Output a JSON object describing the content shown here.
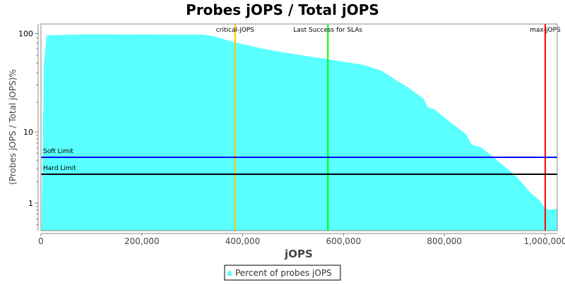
{
  "chart_data": {
    "type": "area",
    "title": "Probes jOPS / Total jOPS",
    "xlabel": "jOPS",
    "ylabel": "(Probes jOPS / Total jOPS)%",
    "xlim": [
      0,
      1024000
    ],
    "ylim": [
      0.41,
      125
    ],
    "yscale": "log",
    "grid": false,
    "legend_position": "bottom",
    "x_ticks": [
      {
        "value": 0,
        "label": "0"
      },
      {
        "value": 200000,
        "label": "200,000"
      },
      {
        "value": 400000,
        "label": "400,000"
      },
      {
        "value": 600000,
        "label": "600,000"
      },
      {
        "value": 800000,
        "label": "800,000"
      },
      {
        "value": 1000000,
        "label": "1,000,000"
      }
    ],
    "y_ticks": [
      {
        "value": 1,
        "label": "1"
      },
      {
        "value": 10,
        "label": "10"
      },
      {
        "value": 100,
        "label": "100"
      }
    ],
    "series": [
      {
        "name": "Percent of probes jOPS",
        "color": "#5AFFFF",
        "x": [
          1400,
          5600,
          11200,
          86800,
          318000,
          339000,
          385000,
          441000,
          479000,
          570000,
          640000,
          675000,
          703000,
          724000,
          759000,
          767000,
          780000,
          815000,
          843000,
          854000,
          871000,
          899000,
          938000,
          955000,
          969000,
          990000,
          1000000,
          1008000,
          1024000
        ],
        "y": [
          0.5,
          46,
          96,
          98,
          97.5,
          95,
          81,
          70,
          64.5,
          54.7,
          48,
          42,
          33.9,
          29.2,
          21.7,
          17.8,
          17,
          12.2,
          9.3,
          6.6,
          6.2,
          4.3,
          2.55,
          1.89,
          1.44,
          1.07,
          0.85,
          0.81,
          0.83
        ]
      }
    ],
    "horizontal_markers": [
      {
        "label": "Soft Limit",
        "value": 4.4,
        "color": "#0000FF"
      },
      {
        "label": "Hard Limit",
        "value": 2.55,
        "color": "#000000"
      }
    ],
    "vertical_markers": [
      {
        "label": "critical-jOPS",
        "value": 385000,
        "color": "#FFC800"
      },
      {
        "label": "Last Success for SLAs",
        "value": 569000,
        "color": "#00FF00"
      },
      {
        "label": "max-jOPS",
        "value": 1000000,
        "color": "#FF0000"
      }
    ]
  }
}
